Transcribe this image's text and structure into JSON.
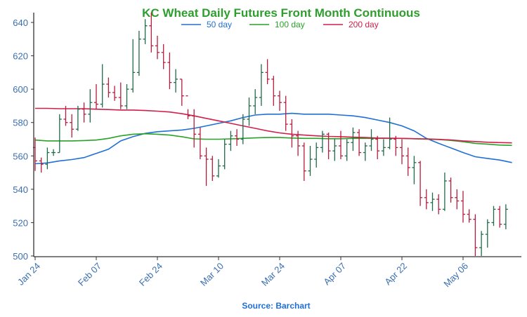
{
  "chart_data": {
    "type": "ohlc",
    "title": "KC Wheat Daily Futures Front Month Continuous",
    "source": "Source: Barchart",
    "ylim": [
      500,
      645
    ],
    "yticks": [
      500,
      520,
      540,
      560,
      580,
      600,
      620,
      640
    ],
    "xticks": [
      {
        "label": "Jan 24",
        "index": 0
      },
      {
        "label": "Feb 07",
        "index": 10
      },
      {
        "label": "Feb 24",
        "index": 20
      },
      {
        "label": "Mar 10",
        "index": 30
      },
      {
        "label": "Mar 24",
        "index": 40
      },
      {
        "label": "Apr 07",
        "index": 50
      },
      {
        "label": "Apr 22",
        "index": 60
      },
      {
        "label": "May 06",
        "index": 70
      }
    ],
    "grid": false,
    "legend": "top-center",
    "colors": {
      "title": "#2e9e2e",
      "up": "#1f6b48",
      "down": "#b51c3c",
      "axis": "#333333",
      "tick_label": "#3a6fb0",
      "sma50": "#1f6fd6",
      "sma100": "#27a327",
      "sma200": "#d11f4a",
      "source": "#1f6fd6"
    },
    "series_ma": [
      {
        "name": "50 day",
        "color_key": "sma50",
        "points": [
          [
            0,
            555.3
          ],
          [
            2,
            555.8
          ],
          [
            4,
            557
          ],
          [
            6,
            557.8
          ],
          [
            8,
            559
          ],
          [
            10,
            561.5
          ],
          [
            12,
            564
          ],
          [
            14,
            569
          ],
          [
            16,
            571.5
          ],
          [
            18,
            573.5
          ],
          [
            20,
            574.5
          ],
          [
            22,
            575
          ],
          [
            24,
            575.5
          ],
          [
            26,
            576.5
          ],
          [
            28,
            578
          ],
          [
            30,
            579.5
          ],
          [
            32,
            581
          ],
          [
            34,
            583
          ],
          [
            36,
            584.5
          ],
          [
            38,
            585
          ],
          [
            40,
            585
          ],
          [
            42,
            585.5
          ],
          [
            44,
            585
          ],
          [
            46,
            585
          ],
          [
            48,
            585
          ],
          [
            50,
            584.5
          ],
          [
            52,
            584
          ],
          [
            54,
            583
          ],
          [
            56,
            581.5
          ],
          [
            58,
            580
          ],
          [
            60,
            578
          ],
          [
            62,
            575
          ],
          [
            64,
            570.5
          ],
          [
            66,
            567.5
          ],
          [
            68,
            564.8
          ],
          [
            70,
            562
          ],
          [
            72,
            559.5
          ],
          [
            74,
            558.5
          ],
          [
            76,
            557.5
          ],
          [
            78,
            556
          ]
        ]
      },
      {
        "name": "100 day",
        "color_key": "sma100",
        "points": [
          [
            0,
            569.5
          ],
          [
            2,
            569
          ],
          [
            4,
            569
          ],
          [
            6,
            569
          ],
          [
            8,
            569.2
          ],
          [
            10,
            569.5
          ],
          [
            12,
            570.5
          ],
          [
            14,
            572
          ],
          [
            16,
            573
          ],
          [
            18,
            573.3
          ],
          [
            20,
            573
          ],
          [
            22,
            572.5
          ],
          [
            24,
            571.5
          ],
          [
            26,
            570.2
          ],
          [
            28,
            570
          ],
          [
            30,
            570
          ],
          [
            32,
            570.2
          ],
          [
            34,
            570.5
          ],
          [
            36,
            570.8
          ],
          [
            38,
            571
          ],
          [
            40,
            571
          ],
          [
            42,
            570.7
          ],
          [
            44,
            570.5
          ],
          [
            46,
            570.5
          ],
          [
            48,
            570.3
          ],
          [
            50,
            570.3
          ],
          [
            52,
            570.5
          ],
          [
            54,
            570.5
          ],
          [
            56,
            570.5
          ],
          [
            58,
            570.5
          ],
          [
            60,
            570.5
          ],
          [
            62,
            570.3
          ],
          [
            64,
            570
          ],
          [
            66,
            569.8
          ],
          [
            68,
            569.3
          ],
          [
            70,
            568.5
          ],
          [
            72,
            567.5
          ],
          [
            74,
            567
          ],
          [
            76,
            566.5
          ],
          [
            78,
            566.3
          ]
        ]
      },
      {
        "name": "200 day",
        "color_key": "sma200",
        "points": [
          [
            0,
            588.5
          ],
          [
            2,
            588.5
          ],
          [
            4,
            588.3
          ],
          [
            6,
            588.3
          ],
          [
            8,
            588.3
          ],
          [
            10,
            588
          ],
          [
            12,
            587.8
          ],
          [
            14,
            587.5
          ],
          [
            16,
            587.5
          ],
          [
            18,
            587.2
          ],
          [
            20,
            586.8
          ],
          [
            22,
            586.3
          ],
          [
            24,
            585.3
          ],
          [
            26,
            584
          ],
          [
            28,
            582.5
          ],
          [
            30,
            581
          ],
          [
            32,
            579.5
          ],
          [
            34,
            578
          ],
          [
            36,
            576.5
          ],
          [
            38,
            575
          ],
          [
            40,
            573.8
          ],
          [
            42,
            573
          ],
          [
            44,
            572.5
          ],
          [
            46,
            572
          ],
          [
            48,
            571.7
          ],
          [
            50,
            571.5
          ],
          [
            52,
            571.2
          ],
          [
            54,
            571
          ],
          [
            56,
            570.7
          ],
          [
            58,
            570.6
          ],
          [
            60,
            570.5
          ],
          [
            62,
            570.3
          ],
          [
            64,
            570.2
          ],
          [
            66,
            569.9
          ],
          [
            68,
            569.6
          ],
          [
            70,
            569
          ],
          [
            72,
            568.6
          ],
          [
            74,
            568.2
          ],
          [
            76,
            568
          ],
          [
            78,
            567.8
          ]
        ]
      }
    ],
    "bars": [
      [
        0,
        565,
        571,
        551,
        557
      ],
      [
        1,
        557,
        559,
        550,
        555
      ],
      [
        2,
        555,
        565,
        552,
        562
      ],
      [
        3,
        562,
        564,
        560,
        562
      ],
      [
        4,
        562,
        585,
        562,
        582
      ],
      [
        5,
        582,
        590,
        578,
        580
      ],
      [
        6,
        580,
        585,
        571,
        576
      ],
      [
        7,
        576,
        590,
        575,
        588
      ],
      [
        8,
        588,
        592,
        580,
        585
      ],
      [
        9,
        585,
        600,
        580,
        592
      ],
      [
        10,
        592,
        603,
        588,
        591
      ],
      [
        11,
        591,
        615,
        589,
        603
      ],
      [
        12,
        603,
        607,
        595,
        598
      ],
      [
        13,
        598,
        602,
        593,
        595
      ],
      [
        14,
        595,
        604,
        588,
        590
      ],
      [
        15,
        590,
        603,
        588,
        600
      ],
      [
        16,
        600,
        630,
        598,
        610
      ],
      [
        17,
        610,
        635,
        608,
        630
      ],
      [
        18,
        630,
        642,
        627,
        638
      ],
      [
        19,
        638,
        646,
        622,
        626
      ],
      [
        20,
        626,
        632,
        618,
        622
      ],
      [
        21,
        622,
        627,
        612,
        616
      ],
      [
        22,
        616,
        622,
        600,
        604
      ],
      [
        23,
        604,
        612,
        598,
        606
      ],
      [
        24,
        606,
        606,
        590,
        596
      ],
      [
        25,
        596,
        588,
        582,
        584
      ],
      [
        26,
        584,
        588,
        565,
        573
      ],
      [
        27,
        573,
        577,
        558,
        560
      ],
      [
        28,
        560,
        565,
        542,
        558
      ],
      [
        29,
        558,
        560,
        545,
        548
      ],
      [
        30,
        548,
        558,
        547,
        554
      ],
      [
        31,
        554,
        570,
        552,
        567
      ],
      [
        32,
        567,
        575,
        563,
        572
      ],
      [
        33,
        572,
        576,
        566,
        570
      ],
      [
        34,
        570,
        585,
        567,
        582
      ],
      [
        35,
        582,
        595,
        578,
        590
      ],
      [
        36,
        590,
        600,
        585,
        595
      ],
      [
        37,
        595,
        615,
        590,
        610
      ],
      [
        38,
        610,
        618,
        603,
        606
      ],
      [
        39,
        606,
        608,
        590,
        596
      ],
      [
        40,
        596,
        599,
        587,
        592
      ],
      [
        41,
        592,
        596,
        575,
        579
      ],
      [
        42,
        579,
        582,
        565,
        572
      ],
      [
        43,
        572,
        575,
        560,
        566
      ],
      [
        44,
        566,
        568,
        545,
        551
      ],
      [
        45,
        551,
        566,
        548,
        558
      ],
      [
        46,
        558,
        568,
        553,
        565
      ],
      [
        47,
        565,
        575,
        562,
        573
      ],
      [
        48,
        573,
        574,
        558,
        563
      ],
      [
        49,
        563,
        570,
        557,
        566
      ],
      [
        50,
        566,
        575,
        558,
        560
      ],
      [
        51,
        560,
        570,
        557,
        568
      ],
      [
        52,
        568,
        577,
        563,
        574
      ],
      [
        53,
        574,
        576,
        560,
        562
      ],
      [
        54,
        562,
        568,
        557,
        566
      ],
      [
        55,
        566,
        576,
        563,
        570
      ],
      [
        56,
        570,
        572,
        558,
        563
      ],
      [
        57,
        563,
        570,
        560,
        565
      ],
      [
        58,
        565,
        583,
        564,
        570
      ],
      [
        59,
        570,
        572,
        560,
        565
      ],
      [
        60,
        565,
        570,
        555,
        560
      ],
      [
        61,
        560,
        565,
        548,
        553
      ],
      [
        62,
        553,
        560,
        543,
        556
      ],
      [
        63,
        556,
        557,
        530,
        535
      ],
      [
        64,
        535,
        540,
        528,
        532
      ],
      [
        65,
        532,
        538,
        527,
        534
      ],
      [
        66,
        534,
        537,
        525,
        528
      ],
      [
        67,
        528,
        550,
        527,
        545
      ],
      [
        68,
        545,
        547,
        532,
        535
      ],
      [
        69,
        535,
        540,
        528,
        533
      ],
      [
        70,
        533,
        539,
        520,
        525
      ],
      [
        71,
        525,
        528,
        520,
        522
      ],
      [
        72,
        522,
        525,
        500,
        505
      ],
      [
        73,
        505,
        515,
        500,
        513
      ],
      [
        74,
        513,
        522,
        505,
        520
      ],
      [
        75,
        520,
        530,
        518,
        528
      ],
      [
        76,
        528,
        530,
        517,
        519
      ],
      [
        77,
        519,
        531,
        516,
        528
      ]
    ]
  }
}
